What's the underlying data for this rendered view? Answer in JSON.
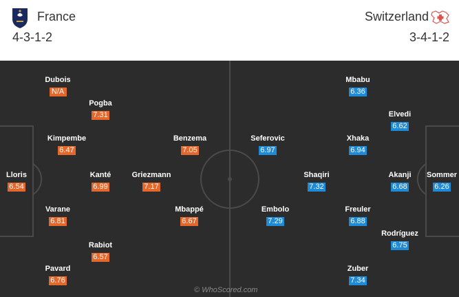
{
  "home": {
    "name": "France",
    "formation": "4-3-1-2",
    "rating_color": "#e4672c",
    "crest_icon": "france-crest-icon",
    "players": [
      {
        "name": "Dubois",
        "rating": "N/A"
      },
      {
        "name": "Pogba",
        "rating": "7.31"
      },
      {
        "name": "Kimpembe",
        "rating": "6.47"
      },
      {
        "name": "Benzema",
        "rating": "7.05"
      },
      {
        "name": "Lloris",
        "rating": "6.54"
      },
      {
        "name": "Kanté",
        "rating": "6.99"
      },
      {
        "name": "Griezmann",
        "rating": "7.17"
      },
      {
        "name": "Varane",
        "rating": "6.81"
      },
      {
        "name": "Mbappé",
        "rating": "6.67"
      },
      {
        "name": "Rabiot",
        "rating": "6.57"
      },
      {
        "name": "Pavard",
        "rating": "6.76"
      }
    ]
  },
  "away": {
    "name": "Switzerland",
    "formation": "3-4-1-2",
    "rating_color": "#1f8ad6",
    "crest_icon": "switzerland-crest-icon",
    "players": [
      {
        "name": "Mbabu",
        "rating": "6.36"
      },
      {
        "name": "Elvedi",
        "rating": "6.62"
      },
      {
        "name": "Seferovic",
        "rating": "6.97"
      },
      {
        "name": "Xhaka",
        "rating": "6.94"
      },
      {
        "name": "Shaqiri",
        "rating": "7.32"
      },
      {
        "name": "Akanji",
        "rating": "6.68"
      },
      {
        "name": "Sommer",
        "rating": "6.26"
      },
      {
        "name": "Embolo",
        "rating": "7.29"
      },
      {
        "name": "Freuler",
        "rating": "6.88"
      },
      {
        "name": "Rodríguez",
        "rating": "6.75"
      },
      {
        "name": "Zuber",
        "rating": "7.34"
      }
    ]
  },
  "pitch": {
    "background_color": "#2c2c2c",
    "line_color": "#4a4a4a"
  },
  "watermark": "© WhoScored.com"
}
